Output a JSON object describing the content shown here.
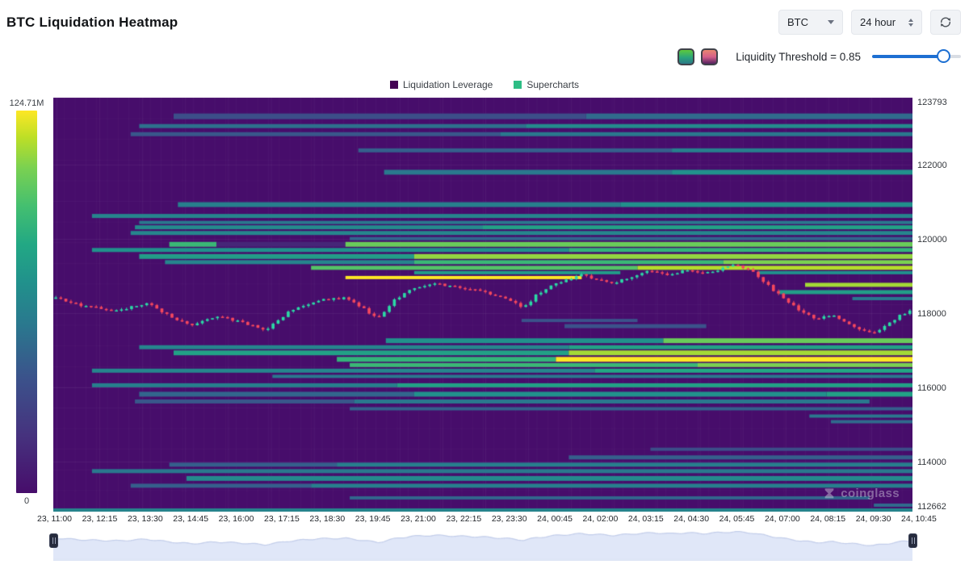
{
  "header": {
    "title": "BTC Liquidation Heatmap",
    "symbol_select": "BTC",
    "interval_select": "24 hour"
  },
  "controls": {
    "threshold_label": "Liquidity Threshold = 0.85",
    "threshold_value": 0.85,
    "slider_color": "#1d6fd2"
  },
  "legend": {
    "items": [
      {
        "label": "Liquidation Leverage",
        "color": "#440154"
      },
      {
        "label": "Supercharts",
        "color": "#2ebd85"
      }
    ]
  },
  "colorbar": {
    "max_label": "124.71M",
    "min_label": "0"
  },
  "watermark_text": "coinglass",
  "chart_data": {
    "type": "heatmap",
    "title": "BTC Liquidation Heatmap",
    "price_range": [
      112662,
      123793
    ],
    "y_ticks": [
      "123793",
      "122000",
      "120000",
      "118000",
      "116000",
      "114000",
      "112662"
    ],
    "y_tick_values": [
      123793,
      122000,
      120000,
      118000,
      116000,
      114000,
      112662
    ],
    "x_ticks": [
      "23, 11:00",
      "23, 12:15",
      "23, 13:30",
      "23, 14:45",
      "23, 16:00",
      "23, 17:15",
      "23, 18:30",
      "23, 19:45",
      "23, 21:00",
      "23, 22:15",
      "23, 23:30",
      "24, 00:45",
      "24, 02:00",
      "24, 03:15",
      "24, 04:30",
      "24, 05:45",
      "24, 07:00",
      "24, 08:15",
      "24, 09:30",
      "24, 10:45"
    ],
    "colorbar_max": 124710000,
    "candle_up_color": "#2bd9a5",
    "candle_down_color": "#f5475d",
    "candle_count": 170,
    "price_path": [
      {
        "t": 0.0,
        "p": 118434
      },
      {
        "t": 0.038,
        "p": 118173
      },
      {
        "t": 0.076,
        "p": 118064
      },
      {
        "t": 0.109,
        "p": 118282
      },
      {
        "t": 0.132,
        "p": 117955
      },
      {
        "t": 0.161,
        "p": 117672
      },
      {
        "t": 0.189,
        "p": 117911
      },
      {
        "t": 0.217,
        "p": 117780
      },
      {
        "t": 0.246,
        "p": 117541
      },
      {
        "t": 0.274,
        "p": 118020
      },
      {
        "t": 0.307,
        "p": 118347
      },
      {
        "t": 0.34,
        "p": 118412
      },
      {
        "t": 0.359,
        "p": 118151
      },
      {
        "t": 0.378,
        "p": 117846
      },
      {
        "t": 0.397,
        "p": 118347
      },
      {
        "t": 0.416,
        "p": 118673
      },
      {
        "t": 0.444,
        "p": 118804
      },
      {
        "t": 0.472,
        "p": 118695
      },
      {
        "t": 0.501,
        "p": 118586
      },
      {
        "t": 0.529,
        "p": 118368
      },
      {
        "t": 0.548,
        "p": 118151
      },
      {
        "t": 0.562,
        "p": 118477
      },
      {
        "t": 0.586,
        "p": 118804
      },
      {
        "t": 0.614,
        "p": 119022
      },
      {
        "t": 0.633,
        "p": 118913
      },
      {
        "t": 0.652,
        "p": 118804
      },
      {
        "t": 0.681,
        "p": 119044
      },
      {
        "t": 0.699,
        "p": 119153
      },
      {
        "t": 0.718,
        "p": 119022
      },
      {
        "t": 0.737,
        "p": 119153
      },
      {
        "t": 0.756,
        "p": 119044
      },
      {
        "t": 0.775,
        "p": 119174
      },
      {
        "t": 0.794,
        "p": 119283
      },
      {
        "t": 0.813,
        "p": 119131
      },
      {
        "t": 0.832,
        "p": 118738
      },
      {
        "t": 0.851,
        "p": 118368
      },
      {
        "t": 0.87,
        "p": 118064
      },
      {
        "t": 0.888,
        "p": 117846
      },
      {
        "t": 0.907,
        "p": 117933
      },
      {
        "t": 0.926,
        "p": 117715
      },
      {
        "t": 0.954,
        "p": 117432
      },
      {
        "t": 0.969,
        "p": 117650
      },
      {
        "t": 0.988,
        "p": 117976
      },
      {
        "t": 1.0,
        "p": 118085
      }
    ],
    "bands": [
      {
        "price": 123291,
        "th": 7,
        "segs": [
          [
            0.14,
            0.62,
            0.28
          ],
          [
            0.62,
            1,
            0.4
          ]
        ]
      },
      {
        "price": 123029,
        "th": 5,
        "segs": [
          [
            0.1,
            0.55,
            0.42
          ],
          [
            0.55,
            1,
            0.52
          ]
        ]
      },
      {
        "price": 122811,
        "th": 5,
        "segs": [
          [
            0.09,
            0.52,
            0.32
          ],
          [
            0.52,
            1,
            0.45
          ]
        ]
      },
      {
        "price": 122376,
        "th": 5,
        "segs": [
          [
            0.355,
            0.72,
            0.35
          ],
          [
            0.72,
            1,
            0.48
          ]
        ]
      },
      {
        "price": 121788,
        "th": 6,
        "segs": [
          [
            0.385,
            0.72,
            0.45
          ],
          [
            0.72,
            1,
            0.55
          ]
        ]
      },
      {
        "price": 120917,
        "th": 6,
        "segs": [
          [
            0.145,
            0.66,
            0.48
          ],
          [
            0.66,
            1,
            0.55
          ]
        ]
      },
      {
        "price": 120612,
        "th": 5,
        "segs": [
          [
            0.045,
            1,
            0.5
          ]
        ]
      },
      {
        "price": 120437,
        "th": 4,
        "segs": [
          [
            0.1,
            1,
            0.45
          ]
        ]
      },
      {
        "price": 120307,
        "th": 5,
        "segs": [
          [
            0.095,
            0.5,
            0.52
          ],
          [
            0.5,
            1,
            0.62
          ]
        ]
      },
      {
        "price": 120154,
        "th": 5,
        "segs": [
          [
            0.09,
            1,
            0.5
          ]
        ]
      },
      {
        "price": 120002,
        "th": 4,
        "segs": [
          [
            0.345,
            1,
            0.38
          ]
        ]
      },
      {
        "price": 119849,
        "th": 6,
        "segs": [
          [
            0.135,
            0.19,
            0.72
          ],
          [
            0.19,
            0.34,
            0.1
          ],
          [
            0.34,
            1,
            0.82
          ]
        ]
      },
      {
        "price": 119697,
        "th": 5,
        "segs": [
          [
            0.045,
            0.6,
            0.55
          ],
          [
            0.6,
            1,
            0.7
          ]
        ]
      },
      {
        "price": 119523,
        "th": 6,
        "segs": [
          [
            0.1,
            0.42,
            0.6
          ],
          [
            0.42,
            1,
            0.88
          ]
        ]
      },
      {
        "price": 119370,
        "th": 5,
        "segs": [
          [
            0.13,
            0.42,
            0.5
          ],
          [
            0.42,
            0.78,
            0.72
          ],
          [
            0.78,
            1,
            0.85
          ]
        ]
      },
      {
        "price": 119218,
        "th": 5,
        "segs": [
          [
            0.3,
            0.68,
            0.78
          ],
          [
            0.68,
            1,
            0.92
          ]
        ]
      },
      {
        "price": 119087,
        "th": 4,
        "segs": [
          [
            0.42,
            0.66,
            0.6
          ],
          [
            0.82,
            1,
            0.55
          ]
        ]
      },
      {
        "price": 118956,
        "th": 4,
        "segs": [
          [
            0.34,
            0.615,
            1.0
          ]
        ]
      },
      {
        "price": 118760,
        "th": 5,
        "segs": [
          [
            0.875,
            1,
            0.9
          ]
        ]
      },
      {
        "price": 118564,
        "th": 5,
        "segs": [
          [
            0.845,
            1,
            0.6
          ]
        ]
      },
      {
        "price": 118390,
        "th": 4,
        "segs": [
          [
            0.93,
            1,
            0.45
          ]
        ]
      },
      {
        "price": 117802,
        "th": 4,
        "segs": [
          [
            0.545,
            0.68,
            0.3
          ]
        ]
      },
      {
        "price": 117650,
        "th": 5,
        "segs": [
          [
            0.595,
            0.76,
            0.3
          ]
        ]
      },
      {
        "price": 117258,
        "th": 6,
        "segs": [
          [
            0.387,
            0.71,
            0.55
          ],
          [
            0.71,
            1,
            0.82
          ]
        ]
      },
      {
        "price": 117083,
        "th": 5,
        "segs": [
          [
            0.1,
            0.6,
            0.5
          ],
          [
            0.6,
            1,
            0.62
          ]
        ]
      },
      {
        "price": 116931,
        "th": 6,
        "segs": [
          [
            0.14,
            0.6,
            0.62
          ],
          [
            0.6,
            1,
            0.9
          ]
        ]
      },
      {
        "price": 116757,
        "th": 6,
        "segs": [
          [
            0.33,
            0.585,
            0.7
          ],
          [
            0.585,
            1,
            1.0
          ]
        ]
      },
      {
        "price": 116604,
        "th": 5,
        "segs": [
          [
            0.345,
            0.75,
            0.72
          ],
          [
            0.75,
            1,
            0.85
          ]
        ]
      },
      {
        "price": 116452,
        "th": 5,
        "segs": [
          [
            0.045,
            0.63,
            0.5
          ],
          [
            0.63,
            1,
            0.65
          ]
        ]
      },
      {
        "price": 116299,
        "th": 4,
        "segs": [
          [
            0.255,
            1,
            0.45
          ]
        ]
      },
      {
        "price": 116060,
        "th": 5,
        "segs": [
          [
            0.045,
            0.4,
            0.48
          ],
          [
            0.4,
            1,
            0.62
          ]
        ]
      },
      {
        "price": 115820,
        "th": 6,
        "segs": [
          [
            0.1,
            0.42,
            0.38
          ],
          [
            0.42,
            0.9,
            0.55
          ],
          [
            0.9,
            1,
            0.62
          ]
        ]
      },
      {
        "price": 115624,
        "th": 5,
        "segs": [
          [
            0.095,
            0.35,
            0.32
          ],
          [
            0.35,
            0.95,
            0.45
          ]
        ]
      },
      {
        "price": 115428,
        "th": 4,
        "segs": [
          [
            0.345,
            1,
            0.35
          ]
        ]
      },
      {
        "price": 115232,
        "th": 4,
        "segs": [
          [
            0.88,
            1,
            0.45
          ]
        ]
      },
      {
        "price": 115080,
        "th": 4,
        "segs": [
          [
            0.905,
            1,
            0.4
          ]
        ]
      },
      {
        "price": 114339,
        "th": 4,
        "segs": [
          [
            0.695,
            1,
            0.28
          ]
        ]
      },
      {
        "price": 114121,
        "th": 5,
        "segs": [
          [
            0.6,
            1,
            0.35
          ]
        ]
      },
      {
        "price": 113925,
        "th": 5,
        "segs": [
          [
            0.135,
            0.33,
            0.35
          ],
          [
            0.33,
            1,
            0.48
          ]
        ]
      },
      {
        "price": 113751,
        "th": 5,
        "segs": [
          [
            0.045,
            1,
            0.45
          ]
        ]
      },
      {
        "price": 113555,
        "th": 6,
        "segs": [
          [
            0.155,
            1,
            0.52
          ]
        ]
      },
      {
        "price": 113359,
        "th": 5,
        "segs": [
          [
            0.09,
            0.3,
            0.35
          ],
          [
            0.3,
            1,
            0.48
          ]
        ]
      },
      {
        "price": 113032,
        "th": 4,
        "segs": [
          [
            0.345,
            0.95,
            0.38
          ]
        ]
      },
      {
        "price": 112836,
        "th": 4,
        "segs": [
          [
            0.955,
            1,
            0.4
          ]
        ]
      },
      {
        "price": 112706,
        "th": 4,
        "segs": [
          [
            0.0,
            1,
            0.5
          ]
        ]
      }
    ]
  }
}
